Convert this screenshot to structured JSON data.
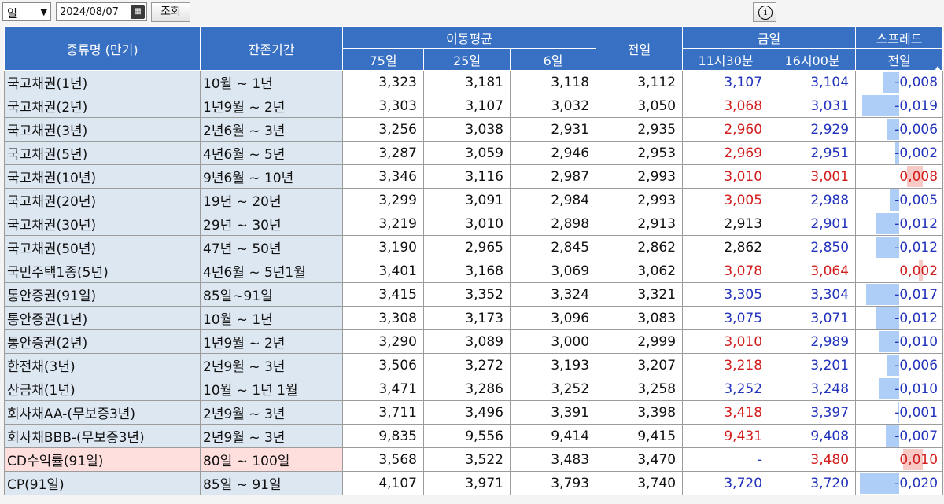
{
  "toolbar": {
    "period_value": "일",
    "date_value": "2024/08/07",
    "query_label": "조회"
  },
  "headers": {
    "name": "종류명 (만기)",
    "term": "잔존기간",
    "moving_avg": "이동평균",
    "ma75": "75일",
    "ma25": "25일",
    "ma6": "6일",
    "prev_day": "전일",
    "today": "금일",
    "t1130": "11시30분",
    "t1600": "16시00분",
    "spread": "스프레드",
    "spread_sub": "전일"
  },
  "colors": {
    "header": "#3870c4",
    "label_bg": "#dde7f1",
    "highlight": "#ffdede",
    "up": "#d21d1d",
    "down": "#2233bb"
  },
  "rows": [
    {
      "name": "국고채권(1년)",
      "term": "10월 ~ 1년",
      "ma75": "3,323",
      "ma25": "3,181",
      "ma6": "3,118",
      "prev": "3,112",
      "t1130": "3,107",
      "t1130_color": "blue",
      "t1600": "3,104",
      "t1600_color": "blue",
      "spread": "-0,008",
      "spread_val": -0.008
    },
    {
      "name": "국고채권(2년)",
      "term": "1년9월 ~ 2년",
      "ma75": "3,303",
      "ma25": "3,107",
      "ma6": "3,032",
      "prev": "3,050",
      "t1130": "3,068",
      "t1130_color": "red",
      "t1600": "3,031",
      "t1600_color": "blue",
      "spread": "-0,019",
      "spread_val": -0.019
    },
    {
      "name": "국고채권(3년)",
      "term": "2년6월 ~ 3년",
      "ma75": "3,256",
      "ma25": "3,038",
      "ma6": "2,931",
      "prev": "2,935",
      "t1130": "2,960",
      "t1130_color": "red",
      "t1600": "2,929",
      "t1600_color": "blue",
      "spread": "-0,006",
      "spread_val": -0.006
    },
    {
      "name": "국고채권(5년)",
      "term": "4년6월 ~ 5년",
      "ma75": "3,287",
      "ma25": "3,059",
      "ma6": "2,946",
      "prev": "2,953",
      "t1130": "2,969",
      "t1130_color": "red",
      "t1600": "2,951",
      "t1600_color": "blue",
      "spread": "-0,002",
      "spread_val": -0.002
    },
    {
      "name": "국고채권(10년)",
      "term": "9년6월 ~ 10년",
      "ma75": "3,346",
      "ma25": "3,116",
      "ma6": "2,987",
      "prev": "2,993",
      "t1130": "3,010",
      "t1130_color": "red",
      "t1600": "3,001",
      "t1600_color": "red",
      "spread": "0,008",
      "spread_val": 0.008
    },
    {
      "name": "국고채권(20년)",
      "term": "19년 ~ 20년",
      "ma75": "3,299",
      "ma25": "3,091",
      "ma6": "2,984",
      "prev": "2,993",
      "t1130": "3,005",
      "t1130_color": "red",
      "t1600": "2,988",
      "t1600_color": "blue",
      "spread": "-0,005",
      "spread_val": -0.005
    },
    {
      "name": "국고채권(30년)",
      "term": "29년 ~ 30년",
      "ma75": "3,219",
      "ma25": "3,010",
      "ma6": "2,898",
      "prev": "2,913",
      "t1130": "2,913",
      "t1130_color": "",
      "t1600": "2,901",
      "t1600_color": "blue",
      "spread": "-0,012",
      "spread_val": -0.012
    },
    {
      "name": "국고채권(50년)",
      "term": "47년 ~ 50년",
      "ma75": "3,190",
      "ma25": "2,965",
      "ma6": "2,845",
      "prev": "2,862",
      "t1130": "2,862",
      "t1130_color": "",
      "t1600": "2,850",
      "t1600_color": "blue",
      "spread": "-0,012",
      "spread_val": -0.012
    },
    {
      "name": "국민주택1종(5년)",
      "term": "4년6월 ~ 5년1월",
      "ma75": "3,401",
      "ma25": "3,168",
      "ma6": "3,069",
      "prev": "3,062",
      "t1130": "3,078",
      "t1130_color": "red",
      "t1600": "3,064",
      "t1600_color": "red",
      "spread": "0,002",
      "spread_val": 0.002
    },
    {
      "name": "통안증권(91일)",
      "term": "85일~91일",
      "ma75": "3,415",
      "ma25": "3,352",
      "ma6": "3,324",
      "prev": "3,321",
      "t1130": "3,305",
      "t1130_color": "blue",
      "t1600": "3,304",
      "t1600_color": "blue",
      "spread": "-0,017",
      "spread_val": -0.017
    },
    {
      "name": "통안증권(1년)",
      "term": "10월 ~ 1년",
      "ma75": "3,308",
      "ma25": "3,173",
      "ma6": "3,096",
      "prev": "3,083",
      "t1130": "3,075",
      "t1130_color": "blue",
      "t1600": "3,071",
      "t1600_color": "blue",
      "spread": "-0,012",
      "spread_val": -0.012
    },
    {
      "name": "통안증권(2년)",
      "term": "1년9월 ~ 2년",
      "ma75": "3,290",
      "ma25": "3,089",
      "ma6": "3,000",
      "prev": "2,999",
      "t1130": "3,010",
      "t1130_color": "red",
      "t1600": "2,989",
      "t1600_color": "blue",
      "spread": "-0,010",
      "spread_val": -0.01
    },
    {
      "name": "한전채(3년)",
      "term": "2년9월 ~ 3년",
      "ma75": "3,506",
      "ma25": "3,272",
      "ma6": "3,193",
      "prev": "3,207",
      "t1130": "3,218",
      "t1130_color": "red",
      "t1600": "3,201",
      "t1600_color": "blue",
      "spread": "-0,006",
      "spread_val": -0.006
    },
    {
      "name": "산금채(1년)",
      "term": "10월 ~ 1년 1월",
      "ma75": "3,471",
      "ma25": "3,286",
      "ma6": "3,252",
      "prev": "3,258",
      "t1130": "3,252",
      "t1130_color": "blue",
      "t1600": "3,248",
      "t1600_color": "blue",
      "spread": "-0,010",
      "spread_val": -0.01
    },
    {
      "name": "회사채AA-(무보증3년)",
      "term": "2년9월 ~ 3년",
      "ma75": "3,711",
      "ma25": "3,496",
      "ma6": "3,391",
      "prev": "3,398",
      "t1130": "3,418",
      "t1130_color": "red",
      "t1600": "3,397",
      "t1600_color": "blue",
      "spread": "-0,001",
      "spread_val": -0.001
    },
    {
      "name": "회사채BBB-(무보증3년)",
      "term": "2년9월 ~ 3년",
      "ma75": "9,835",
      "ma25": "9,556",
      "ma6": "9,414",
      "prev": "9,415",
      "t1130": "9,431",
      "t1130_color": "red",
      "t1600": "9,408",
      "t1600_color": "blue",
      "spread": "-0,007",
      "spread_val": -0.007
    },
    {
      "name": "CD수익률(91일)",
      "term": "80일 ~ 100일",
      "ma75": "3,568",
      "ma25": "3,522",
      "ma6": "3,483",
      "prev": "3,470",
      "t1130": "-",
      "t1130_color": "blue",
      "t1600": "3,480",
      "t1600_color": "red",
      "spread": "0,010",
      "spread_val": 0.01,
      "highlight": true
    },
    {
      "name": "CP(91일)",
      "term": "85일 ~ 91일",
      "ma75": "4,107",
      "ma25": "3,971",
      "ma6": "3,793",
      "prev": "3,740",
      "t1130": "3,720",
      "t1130_color": "blue",
      "t1600": "3,720",
      "t1600_color": "blue",
      "spread": "-0,020",
      "spread_val": -0.02
    }
  ]
}
